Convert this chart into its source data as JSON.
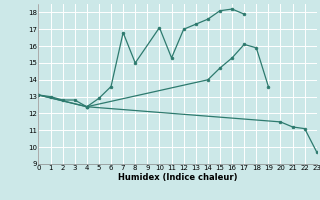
{
  "xlabel": "Humidex (Indice chaleur)",
  "xlim": [
    0,
    23
  ],
  "ylim": [
    9,
    18.5
  ],
  "yticks": [
    9,
    10,
    11,
    12,
    13,
    14,
    15,
    16,
    17,
    18
  ],
  "xticks": [
    0,
    1,
    2,
    3,
    4,
    5,
    6,
    7,
    8,
    9,
    10,
    11,
    12,
    13,
    14,
    15,
    16,
    17,
    18,
    19,
    20,
    21,
    22,
    23
  ],
  "bg_color": "#cce8e8",
  "line_color": "#2d7a6e",
  "grid_color": "#ffffff",
  "series": [
    {
      "x": [
        0,
        1,
        2,
        3,
        4,
        5,
        6,
        7,
        8,
        10,
        11,
        12,
        13,
        14,
        15,
        16,
        17
      ],
      "y": [
        13.1,
        13.0,
        12.8,
        12.8,
        12.4,
        12.9,
        13.6,
        16.8,
        15.0,
        17.1,
        15.3,
        17.0,
        17.3,
        17.6,
        18.1,
        18.2,
        17.9
      ]
    },
    {
      "x": [
        0,
        4,
        14,
        15,
        16,
        17,
        18,
        19
      ],
      "y": [
        13.1,
        12.4,
        14.0,
        14.7,
        15.3,
        16.1,
        15.9,
        13.6
      ]
    },
    {
      "x": [
        0,
        4,
        20,
        21,
        22,
        23
      ],
      "y": [
        13.1,
        12.4,
        11.5,
        11.2,
        11.1,
        9.7
      ]
    }
  ]
}
